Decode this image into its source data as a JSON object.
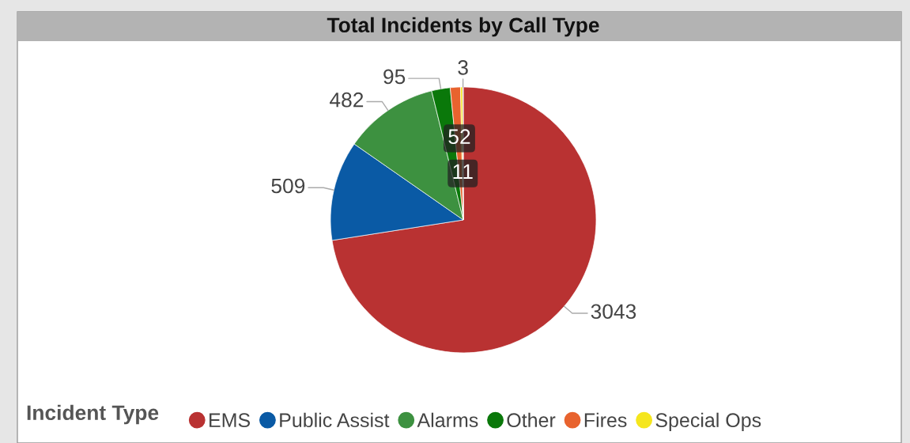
{
  "chart_data": {
    "type": "pie",
    "title": "Total Incidents by Call Type",
    "categories": [
      "EMS",
      "Public Assist",
      "Alarms",
      "Other",
      "Fires",
      "Special Ops",
      null
    ],
    "values": [
      3043,
      509,
      482,
      95,
      52,
      11,
      3
    ],
    "colors": [
      "#b93232",
      "#0a5aa5",
      "#3d9140",
      "#0a780a",
      "#e8632e",
      "#f5e61e",
      "#8a4fa0"
    ],
    "data_labels": true,
    "legend": "bottom",
    "legend_title": "Incident Type"
  }
}
